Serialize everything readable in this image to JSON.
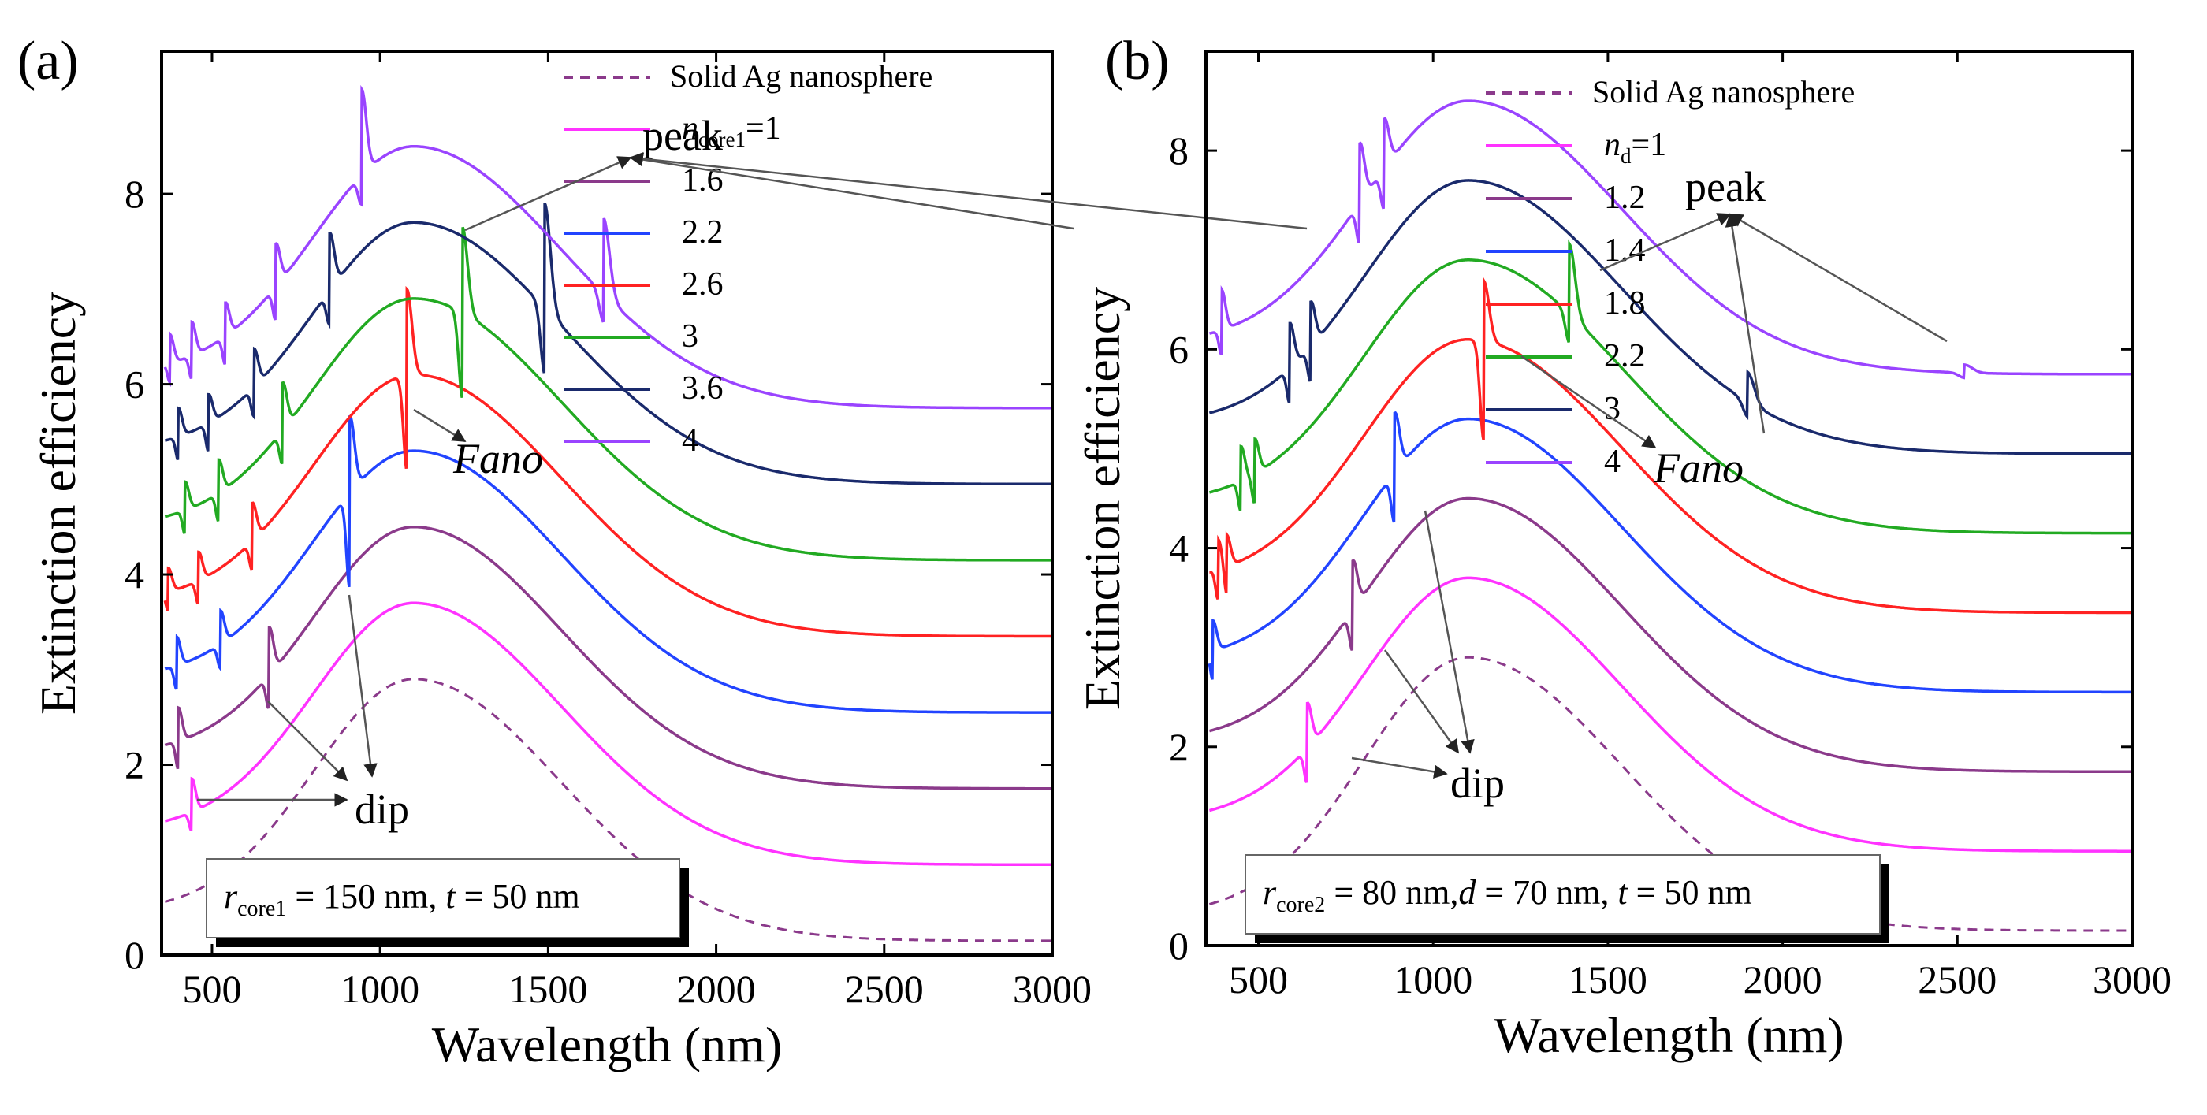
{
  "chart_data": [
    {
      "panel": "(a)",
      "type": "line",
      "xlabel": "Wavelength (nm)",
      "ylabel": "Extinction efficiency",
      "xlim": [
        350,
        3000
      ],
      "ylim": [
        0,
        9.5
      ],
      "xticks": [
        "500",
        "1000",
        "1500",
        "2000",
        "2500",
        "3000"
      ],
      "yticks": [
        "0",
        "2",
        "4",
        "6",
        "8"
      ],
      "legend_title": "Solid Ag nanosphere",
      "legend_var": "n",
      "legend_sub": "core1",
      "legend_eq": "=1",
      "params": {
        "r": "r",
        "r_sub": "core1",
        "r_eq": " = 150 nm, ",
        "t": "t",
        "t_eq": " = 50 nm"
      },
      "annotations": {
        "peak": "peak",
        "dip": "dip",
        "fano": "Fano"
      },
      "series": [
        {
          "name": "Solid Ag nanosphere",
          "label": "Solid Ag nanosphere",
          "color": "#8b3a8b",
          "dashed": true,
          "offset": 0.0,
          "peak": 2.9,
          "start": 0.45,
          "end": 0.15,
          "resonances": []
        },
        {
          "name": "n_core1=1",
          "label": "1",
          "color": "#ff33ff",
          "dashed": false,
          "offset": 0.8,
          "peak": 2.9,
          "start": 0.5,
          "end": 0.15,
          "resonances": [
            [
              440,
              0.35,
              -0.2
            ]
          ]
        },
        {
          "name": "1.6",
          "label": "1.6",
          "color": "#8b3a8b",
          "dashed": false,
          "offset": 1.6,
          "peak": 2.9,
          "start": 0.5,
          "end": 0.15,
          "resonances": [
            [
              400,
              0.35,
              -0.3
            ],
            [
              670,
              0.5,
              -0.35
            ]
          ]
        },
        {
          "name": "2.2",
          "label": "2.2",
          "color": "#2244ff",
          "dashed": false,
          "offset": 2.4,
          "peak": 2.9,
          "start": 0.5,
          "end": 0.15,
          "resonances": [
            [
              395,
              0.3,
              -0.25
            ],
            [
              525,
              0.35,
              -0.25
            ],
            [
              910,
              0.8,
              -1.0
            ]
          ]
        },
        {
          "name": "2.6",
          "label": "2.6",
          "color": "#ff2222",
          "dashed": false,
          "offset": 3.2,
          "peak": 2.9,
          "start": 0.5,
          "end": 0.15,
          "resonances": [
            [
              370,
              0.25,
              -0.2
            ],
            [
              460,
              0.3,
              -0.25
            ],
            [
              620,
              0.4,
              -0.3
            ],
            [
              1080,
              0.9,
              -1.0
            ]
          ]
        },
        {
          "name": "3",
          "label": "3",
          "color": "#22aa22",
          "dashed": false,
          "offset": 4.0,
          "peak": 2.9,
          "start": 0.5,
          "end": 0.15,
          "resonances": [
            [
              420,
              0.3,
              -0.25
            ],
            [
              520,
              0.35,
              -0.3
            ],
            [
              710,
              0.5,
              -0.35
            ],
            [
              1245,
              0.9,
              -0.9
            ]
          ]
        },
        {
          "name": "3.6",
          "label": "3.6",
          "color": "#1a2a6c",
          "dashed": false,
          "offset": 4.8,
          "peak": 2.9,
          "start": 0.5,
          "end": 0.15,
          "resonances": [
            [
              400,
              0.3,
              -0.25
            ],
            [
              490,
              0.3,
              -0.3
            ],
            [
              625,
              0.4,
              -0.3
            ],
            [
              850,
              0.6,
              -0.35
            ],
            [
              1490,
              1.1,
              -0.7
            ]
          ]
        },
        {
          "name": "4",
          "label": "4",
          "color": "#9a44ff",
          "dashed": false,
          "offset": 5.6,
          "peak": 2.9,
          "start": 0.5,
          "end": 0.15,
          "resonances": [
            [
              375,
              0.3,
              -0.2
            ],
            [
              440,
              0.35,
              -0.25
            ],
            [
              540,
              0.35,
              -0.3
            ],
            [
              690,
              0.45,
              -0.35
            ],
            [
              945,
              0.9,
              -0.3
            ],
            [
              1665,
              0.8,
              -0.3
            ]
          ]
        }
      ]
    },
    {
      "panel": "(b)",
      "type": "line",
      "xlabel": "Wavelength (nm)",
      "ylabel": "Extinction efficiency",
      "xlim": [
        350,
        3000
      ],
      "ylim": [
        0,
        9
      ],
      "xticks": [
        "500",
        "1000",
        "1500",
        "2000",
        "2500",
        "3000"
      ],
      "yticks": [
        "0",
        "2",
        "4",
        "6",
        "8"
      ],
      "legend_title": "Solid Ag nanosphere",
      "legend_var": "n",
      "legend_sub": "d",
      "legend_eq": "=1",
      "params": {
        "r": "r",
        "r_sub": "core2",
        "r_eq": " = 80 nm,",
        "d": "d",
        "d_eq": " = 70 nm, ",
        "t": "t",
        "t_eq": " = 50 nm"
      },
      "annotations": {
        "peak": "peak",
        "dip": "dip",
        "fano": "Fano"
      },
      "series": [
        {
          "name": "Solid Ag nanosphere",
          "label": "Solid Ag nanosphere",
          "color": "#8b3a8b",
          "dashed": true,
          "offset": 0.0,
          "peak": 2.9,
          "start": 0.3,
          "end": 0.15,
          "resonances": []
        },
        {
          "name": "n_d=1",
          "label": "1",
          "color": "#ff33ff",
          "dashed": false,
          "offset": 0.8,
          "peak": 2.9,
          "start": 0.45,
          "end": 0.15,
          "resonances": [
            [
              640,
              0.45,
              -0.35
            ]
          ]
        },
        {
          "name": "1.2",
          "label": "1.2",
          "color": "#8b3a8b",
          "dashed": false,
          "offset": 1.6,
          "peak": 2.9,
          "start": 0.45,
          "end": 0.15,
          "resonances": [
            [
              770,
              0.5,
              -0.4
            ]
          ]
        },
        {
          "name": "1.4",
          "label": "1.4",
          "color": "#2244ff",
          "dashed": false,
          "offset": 2.4,
          "peak": 2.9,
          "start": 0.45,
          "end": 0.15,
          "resonances": [
            [
              370,
              0.3,
              -0.3
            ],
            [
              890,
              0.6,
              -0.5
            ]
          ]
        },
        {
          "name": "1.8",
          "label": "1.8",
          "color": "#ff2222",
          "dashed": false,
          "offset": 3.2,
          "peak": 2.9,
          "start": 0.45,
          "end": 0.15,
          "resonances": [
            [
              385,
              0.3,
              -0.3
            ],
            [
              410,
              0.3,
              -0.3
            ],
            [
              1145,
              0.6,
              -1.0
            ]
          ]
        },
        {
          "name": "2.2",
          "label": "2.2",
          "color": "#22aa22",
          "dashed": false,
          "offset": 4.0,
          "peak": 2.9,
          "start": 0.45,
          "end": 0.15,
          "resonances": [
            [
              450,
              0.35,
              -0.3
            ],
            [
              490,
              0.35,
              -0.3
            ],
            [
              1390,
              0.7,
              -0.3
            ]
          ]
        },
        {
          "name": "3",
          "label": "3",
          "color": "#1a2a6c",
          "dashed": false,
          "offset": 4.8,
          "peak": 2.9,
          "start": 0.45,
          "end": 0.15,
          "resonances": [
            [
              590,
              0.45,
              -0.35
            ],
            [
              650,
              0.45,
              -0.35
            ],
            [
              1900,
              0.3,
              -0.15
            ]
          ]
        },
        {
          "name": "4",
          "label": "4",
          "color": "#9a44ff",
          "dashed": false,
          "offset": 5.6,
          "peak": 2.9,
          "start": 0.45,
          "end": 0.15,
          "resonances": [
            [
              395,
              0.4,
              -0.25
            ],
            [
              790,
              0.6,
              -0.4
            ],
            [
              860,
              0.5,
              -0.4
            ],
            [
              2520,
              0.08,
              -0.05
            ]
          ]
        }
      ]
    }
  ]
}
